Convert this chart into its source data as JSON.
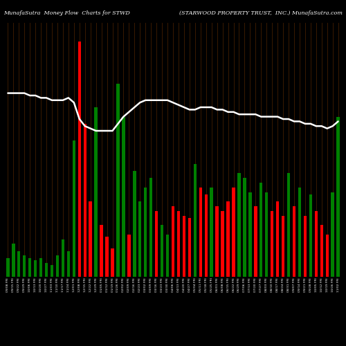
{
  "title_left": "MunafaSutra  Money Flow  Charts for STWD",
  "title_right": "(STARWOOD PROPERTY TRUST,  INC.) MunafaSutra.com",
  "bg_color": "#000000",
  "bar_colors": [
    "green",
    "green",
    "green",
    "green",
    "green",
    "green",
    "green",
    "green",
    "green",
    "green",
    "green",
    "green",
    "green",
    "red",
    "red",
    "red",
    "green",
    "red",
    "red",
    "red",
    "green",
    "green",
    "red",
    "green",
    "green",
    "green",
    "green",
    "red",
    "green",
    "green",
    "red",
    "red",
    "red",
    "red",
    "green",
    "red",
    "red",
    "green",
    "red",
    "red",
    "red",
    "red",
    "green",
    "green",
    "green",
    "red",
    "green",
    "green",
    "red",
    "red",
    "red",
    "green",
    "red",
    "green",
    "red",
    "green",
    "red",
    "red",
    "red",
    "green",
    "green"
  ],
  "bar_heights": [
    8,
    14,
    11,
    9,
    8,
    7,
    8,
    6,
    5,
    9,
    16,
    11,
    58,
    100,
    65,
    32,
    72,
    22,
    17,
    12,
    82,
    68,
    18,
    45,
    32,
    38,
    42,
    28,
    22,
    18,
    30,
    28,
    26,
    25,
    48,
    38,
    35,
    38,
    30,
    28,
    32,
    38,
    44,
    42,
    36,
    30,
    40,
    36,
    28,
    32,
    26,
    44,
    30,
    38,
    26,
    35,
    28,
    22,
    18,
    36,
    68
  ],
  "line_values": [
    78,
    78,
    78,
    78,
    77,
    77,
    76,
    76,
    75,
    75,
    75,
    76,
    74,
    67,
    64,
    63,
    62,
    62,
    62,
    62,
    65,
    68,
    70,
    72,
    74,
    75,
    75,
    75,
    75,
    75,
    74,
    73,
    72,
    71,
    71,
    72,
    72,
    72,
    71,
    71,
    70,
    70,
    69,
    69,
    69,
    69,
    68,
    68,
    68,
    68,
    67,
    67,
    66,
    66,
    65,
    65,
    64,
    64,
    63,
    64,
    66
  ],
  "grid_color": "#3a1a00",
  "line_color": "#ffffff",
  "x_labels": [
    "09/08 FRI",
    "09/15 FRI",
    "09/22 FRI",
    "09/29 FRI",
    "10/06 FRI",
    "10/13 FRI",
    "10/20 FRI",
    "10/27 FRI",
    "11/03 FRI",
    "11/10 FRI",
    "11/17 FRI",
    "11/24 FRI",
    "12/01 FRI",
    "12/08 FRI",
    "12/15 FRI",
    "12/22 FRI",
    "12/29 FRI",
    "01/05 FRI",
    "01/12 FRI",
    "01/19 FRI",
    "01/26 FRI",
    "02/02 FRI",
    "02/09 FRI",
    "02/16 FRI",
    "02/23 FRI",
    "03/02 FRI",
    "03/09 FRI",
    "03/16 FRI",
    "03/23 FRI",
    "03/30 FRI",
    "04/06 FRI",
    "04/13 FRI",
    "04/20 FRI",
    "04/27 FRI",
    "05/04 FRI",
    "05/11 FRI",
    "05/18 FRI",
    "05/25 FRI",
    "06/01 FRI",
    "06/08 FRI",
    "06/15 FRI",
    "06/22 FRI",
    "06/29 FRI",
    "07/06 FRI",
    "07/13 FRI",
    "07/20 FRI",
    "07/27 FRI",
    "08/03 FRI",
    "08/10 FRI",
    "08/17 FRI",
    "08/24 FRI",
    "08/31 FRI",
    "09/07 FRI",
    "09/14 FRI",
    "09/21 FRI",
    "09/28 FRI",
    "10/05 FRI",
    "10/12 FRI",
    "10/19 FRI",
    "10/26 FRI",
    "11/02 FRI"
  ],
  "ylim_max": 108,
  "line_scale": 108,
  "figsize": [
    5.0,
    5.0
  ],
  "dpi": 100
}
